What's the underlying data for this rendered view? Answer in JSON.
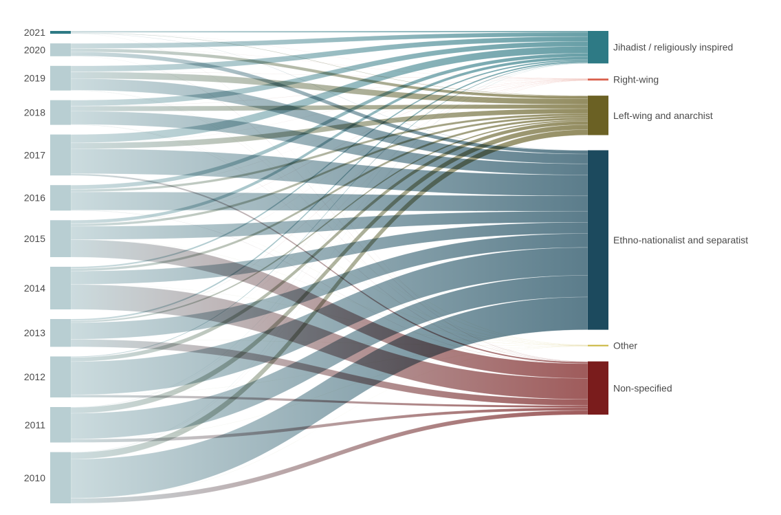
{
  "chart_data": {
    "type": "sankey",
    "source_nodes": [
      {
        "id": "2021",
        "label": "2021"
      },
      {
        "id": "2020",
        "label": "2020"
      },
      {
        "id": "2019",
        "label": "2019"
      },
      {
        "id": "2018",
        "label": "2018"
      },
      {
        "id": "2017",
        "label": "2017"
      },
      {
        "id": "2016",
        "label": "2016"
      },
      {
        "id": "2015",
        "label": "2015"
      },
      {
        "id": "2014",
        "label": "2014"
      },
      {
        "id": "2013",
        "label": "2013"
      },
      {
        "id": "2012",
        "label": "2012"
      },
      {
        "id": "2011",
        "label": "2011"
      },
      {
        "id": "2010",
        "label": "2010"
      }
    ],
    "target_nodes": [
      {
        "id": "jihadist",
        "label": "Jihadist / religiously inspired",
        "color": "#2e7a85"
      },
      {
        "id": "rightwing",
        "label": "Right-wing",
        "color": "#d9604c"
      },
      {
        "id": "leftwing",
        "label": "Left-wing and anarchist",
        "color": "#6b6124"
      },
      {
        "id": "ethno",
        "label": "Ethno-nationalist and separatist",
        "color": "#1c4a5e"
      },
      {
        "id": "other",
        "label": "Other",
        "color": "#c8b43a"
      },
      {
        "id": "nonspec",
        "label": "Non-specified",
        "color": "#7a1c1c"
      }
    ],
    "source_color": "#b8ced2",
    "links": [
      [
        "2021",
        "jihadist",
        2
      ],
      [
        "2021",
        "rightwing",
        0.2
      ],
      [
        "2021",
        "leftwing",
        0.6
      ],
      [
        "2021",
        "ethno",
        0.4
      ],
      [
        "2021",
        "nonspec",
        0.2
      ],
      [
        "2020",
        "jihadist",
        6
      ],
      [
        "2020",
        "rightwing",
        0.2
      ],
      [
        "2020",
        "leftwing",
        4
      ],
      [
        "2020",
        "ethno",
        5
      ],
      [
        "2020",
        "nonspec",
        0.3
      ],
      [
        "2019",
        "jihadist",
        7
      ],
      [
        "2019",
        "rightwing",
        0.3
      ],
      [
        "2019",
        "leftwing",
        8
      ],
      [
        "2019",
        "ethno",
        14
      ],
      [
        "2019",
        "other",
        0.2
      ],
      [
        "2019",
        "nonspec",
        0.2
      ],
      [
        "2018",
        "jihadist",
        7
      ],
      [
        "2018",
        "rightwing",
        0.3
      ],
      [
        "2018",
        "leftwing",
        6
      ],
      [
        "2018",
        "ethno",
        16
      ],
      [
        "2018",
        "other",
        0.2
      ],
      [
        "2018",
        "nonspec",
        0.3
      ],
      [
        "2017",
        "jihadist",
        10
      ],
      [
        "2017",
        "rightwing",
        0.2
      ],
      [
        "2017",
        "leftwing",
        7
      ],
      [
        "2017",
        "ethno",
        30
      ],
      [
        "2017",
        "other",
        0.2
      ],
      [
        "2017",
        "nonspec",
        2
      ],
      [
        "2016",
        "jihadist",
        5
      ],
      [
        "2016",
        "rightwing",
        0.2
      ],
      [
        "2016",
        "leftwing",
        3
      ],
      [
        "2016",
        "ethno",
        22
      ],
      [
        "2016",
        "other",
        0.2
      ],
      [
        "2016",
        "nonspec",
        0.3
      ],
      [
        "2015",
        "jihadist",
        4
      ],
      [
        "2015",
        "rightwing",
        0.3
      ],
      [
        "2015",
        "leftwing",
        3
      ],
      [
        "2015",
        "ethno",
        16
      ],
      [
        "2015",
        "other",
        0.2
      ],
      [
        "2015",
        "nonspec",
        21
      ],
      [
        "2014",
        "jihadist",
        2
      ],
      [
        "2014",
        "rightwing",
        0.2
      ],
      [
        "2014",
        "leftwing",
        3
      ],
      [
        "2014",
        "ethno",
        16
      ],
      [
        "2014",
        "other",
        0.2
      ],
      [
        "2014",
        "nonspec",
        30
      ],
      [
        "2013",
        "jihadist",
        2
      ],
      [
        "2013",
        "rightwing",
        0.3
      ],
      [
        "2013",
        "leftwing",
        2
      ],
      [
        "2013",
        "ethno",
        20
      ],
      [
        "2013",
        "other",
        0.2
      ],
      [
        "2013",
        "nonspec",
        9
      ],
      [
        "2012",
        "jihadist",
        1
      ],
      [
        "2012",
        "rightwing",
        0.2
      ],
      [
        "2012",
        "leftwing",
        5
      ],
      [
        "2012",
        "ethno",
        40
      ],
      [
        "2012",
        "other",
        0.2
      ],
      [
        "2012",
        "nonspec",
        3
      ],
      [
        "2011",
        "jihadist",
        0.3
      ],
      [
        "2011",
        "rightwing",
        0.2
      ],
      [
        "2011",
        "leftwing",
        7
      ],
      [
        "2011",
        "ethno",
        31
      ],
      [
        "2011",
        "other",
        0.2
      ],
      [
        "2011",
        "nonspec",
        4
      ],
      [
        "2010",
        "jihadist",
        0.3
      ],
      [
        "2010",
        "rightwing",
        0.2
      ],
      [
        "2010",
        "leftwing",
        8
      ],
      [
        "2010",
        "ethno",
        47
      ],
      [
        "2010",
        "other",
        0.2
      ],
      [
        "2010",
        "nonspec",
        6
      ]
    ]
  }
}
